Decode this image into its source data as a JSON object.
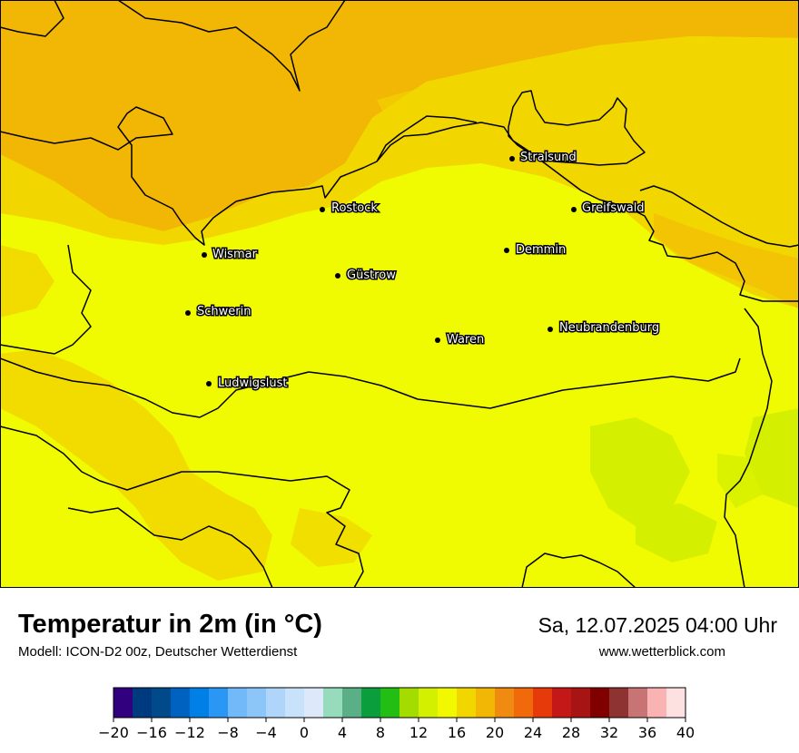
{
  "header": {
    "title": "Temperatur in 2m (in °C)",
    "model": "Modell: ICON-D2 00z, Deutscher Wetterdienst",
    "datetime": "Sa, 12.07.2025 04:00 Uhr",
    "website": "www.wetterblick.com"
  },
  "map": {
    "variable": "2m temperature",
    "unit": "°C",
    "cities": [
      {
        "name": "Stralsund"
      },
      {
        "name": "Rostock"
      },
      {
        "name": "Greifswald"
      },
      {
        "name": "Wismar"
      },
      {
        "name": "Demmin"
      },
      {
        "name": "Güstrow"
      },
      {
        "name": "Schwerin"
      },
      {
        "name": "Neubrandenburg"
      },
      {
        "name": "Waren"
      },
      {
        "name": "Ludwigslust"
      }
    ],
    "colors": {
      "sea_orange": "#f2b705",
      "coast_gold": "#f2d600",
      "land_yellow": "#f0fa00",
      "greenish": "#d4ef00"
    }
  },
  "colorbar": {
    "min": -20,
    "max": 40,
    "step": 2,
    "tick_labels": [
      "−20",
      "−16",
      "−12",
      "−8",
      "−4",
      "0",
      "4",
      "8",
      "12",
      "16",
      "20",
      "24",
      "28",
      "32",
      "36",
      "40"
    ],
    "colors": [
      "#30007e",
      "#003a7e",
      "#004a8c",
      "#0062c0",
      "#0080e6",
      "#2a97f5",
      "#72b9fa",
      "#8cc5f8",
      "#b0d5fb",
      "#c8e2fc",
      "#dde9fa",
      "#96dbbc",
      "#5aaf86",
      "#0a9e3c",
      "#22be14",
      "#a4dc00",
      "#d2f000",
      "#f2f800",
      "#f2d600",
      "#f2b705",
      "#f08a10",
      "#f0690a",
      "#e63a0a",
      "#c41818",
      "#a61414",
      "#800000",
      "#8e3232",
      "#c87474",
      "#fab3b3",
      "#fde1e1"
    ]
  }
}
